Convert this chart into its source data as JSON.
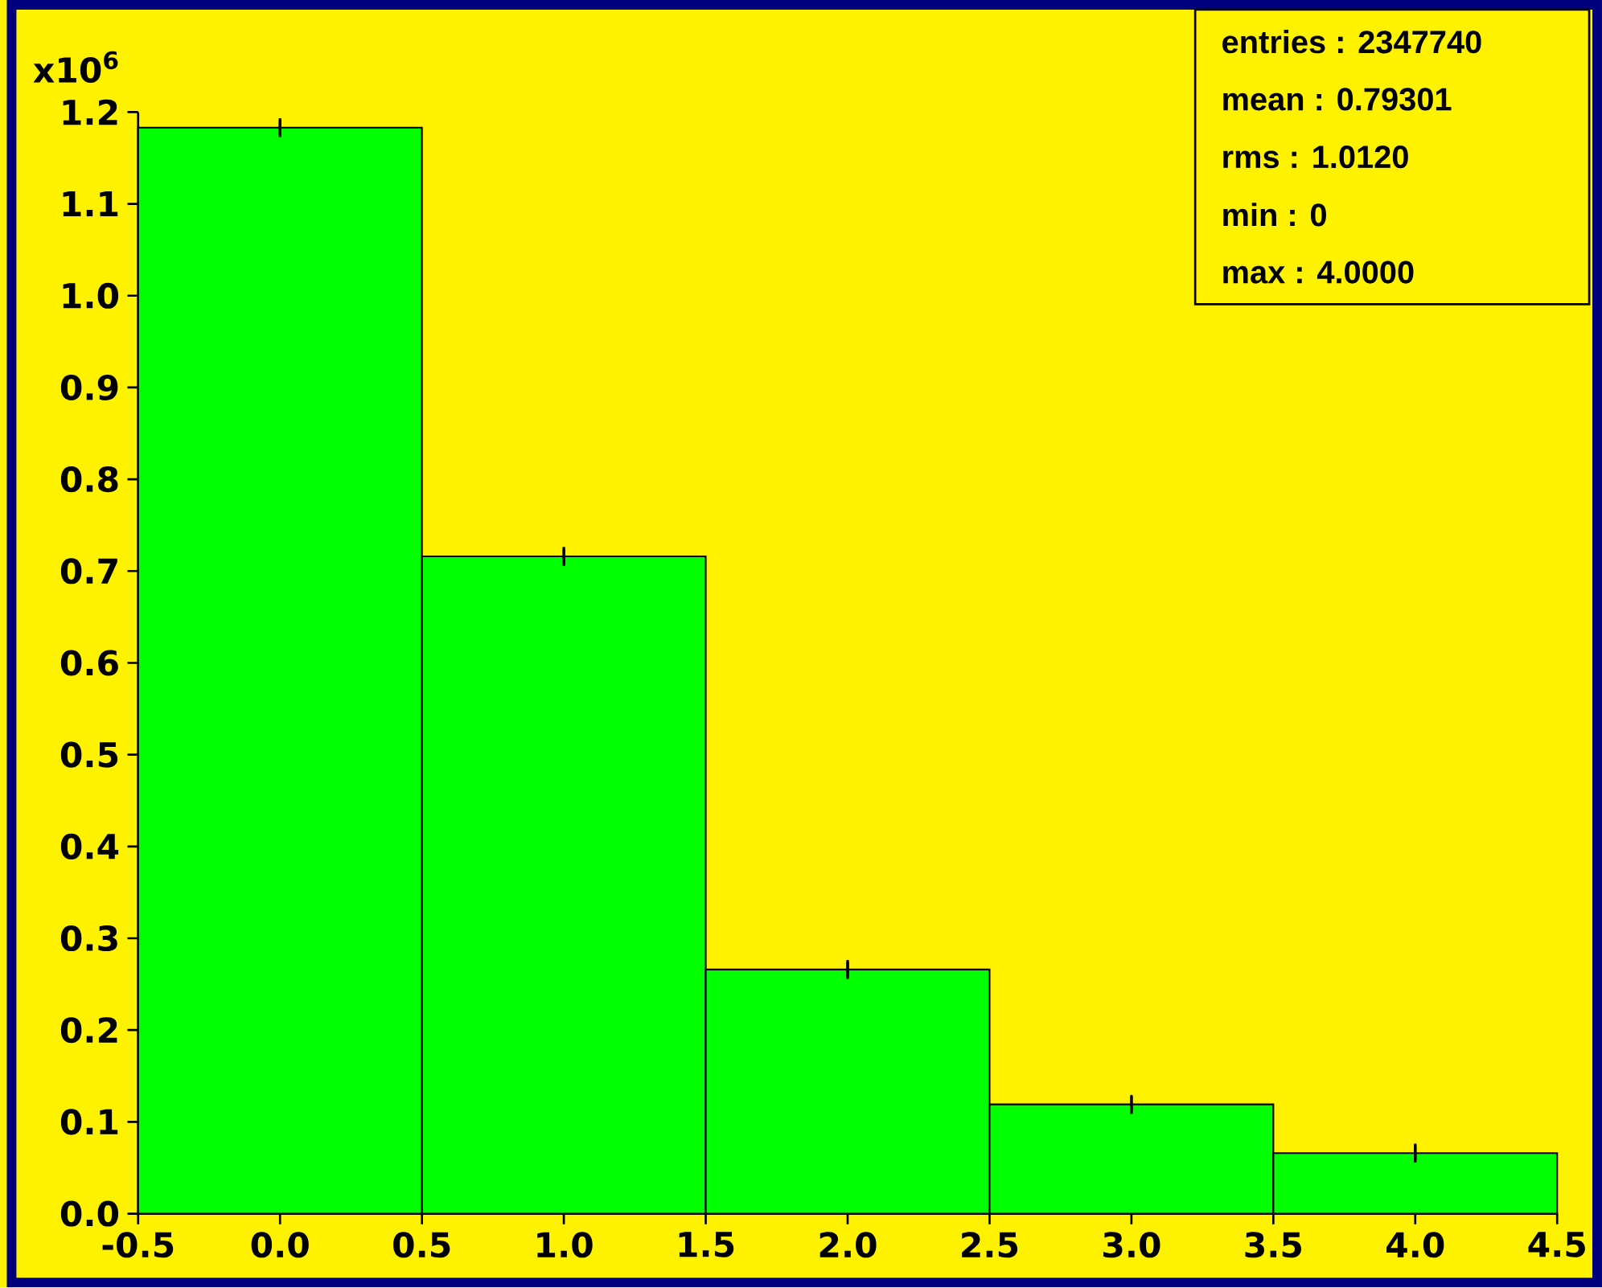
{
  "chart_data": {
    "type": "histogram",
    "bins": [
      -0.5,
      0.5,
      1.5,
      2.5,
      3.5,
      4.5
    ],
    "values": [
      1.183,
      0.716,
      0.266,
      0.119,
      0.066
    ],
    "errors": [
      0.001,
      0.001,
      0.001,
      0.001,
      0.001
    ],
    "color": "#00ff00",
    "ylabel": "x10$^{6}$",
    "xlim": [
      -0.5,
      4.5
    ],
    "ylim": [
      0,
      1.2
    ],
    "xticks": [
      {
        "value": -0.5,
        "label": "-0.5"
      },
      {
        "value": 0,
        "label": "0.0"
      },
      {
        "value": 0.5,
        "label": "0.5"
      },
      {
        "value": 1,
        "label": "1.0"
      },
      {
        "value": 1.5,
        "label": "1.5"
      },
      {
        "value": 2,
        "label": "2.0"
      },
      {
        "value": 2.5,
        "label": "2.5"
      },
      {
        "value": 3,
        "label": "3.0"
      },
      {
        "value": 3.5,
        "label": "3.5"
      },
      {
        "value": 4,
        "label": "4.0"
      },
      {
        "value": 4.5,
        "label": "4.5"
      }
    ],
    "yticks": [
      {
        "value": 0,
        "label": "0.0"
      },
      {
        "value": 0.1,
        "label": "0.1"
      },
      {
        "value": 0.2,
        "label": "0.2"
      },
      {
        "value": 0.3,
        "label": "0.3"
      },
      {
        "value": 0.4,
        "label": "0.4"
      },
      {
        "value": 0.5,
        "label": "0.5"
      },
      {
        "value": 0.6,
        "label": "0.6"
      },
      {
        "value": 0.7,
        "label": "0.7"
      },
      {
        "value": 0.8,
        "label": "0.8"
      },
      {
        "value": 0.9,
        "label": "0.9"
      },
      {
        "value": 1,
        "label": "1.0"
      },
      {
        "value": 1.1,
        "label": "1.1"
      },
      {
        "value": 1.2,
        "label": "1.2"
      }
    ],
    "annotations": [
      "entries : 2347740",
      "mean : 0.79301",
      "rms : 1.0120",
      "min : 0",
      "max : 4.0000"
    ]
  }
}
